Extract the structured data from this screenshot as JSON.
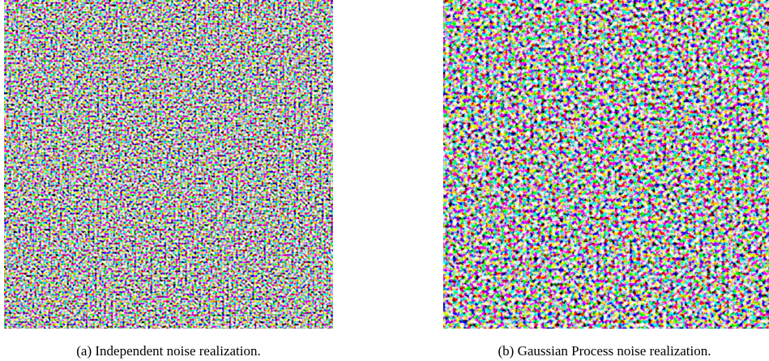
{
  "figure": {
    "panels": [
      {
        "caption": "(a) Independent noise realization."
      },
      {
        "caption": "(b) Gaussian Process noise realization."
      }
    ]
  }
}
